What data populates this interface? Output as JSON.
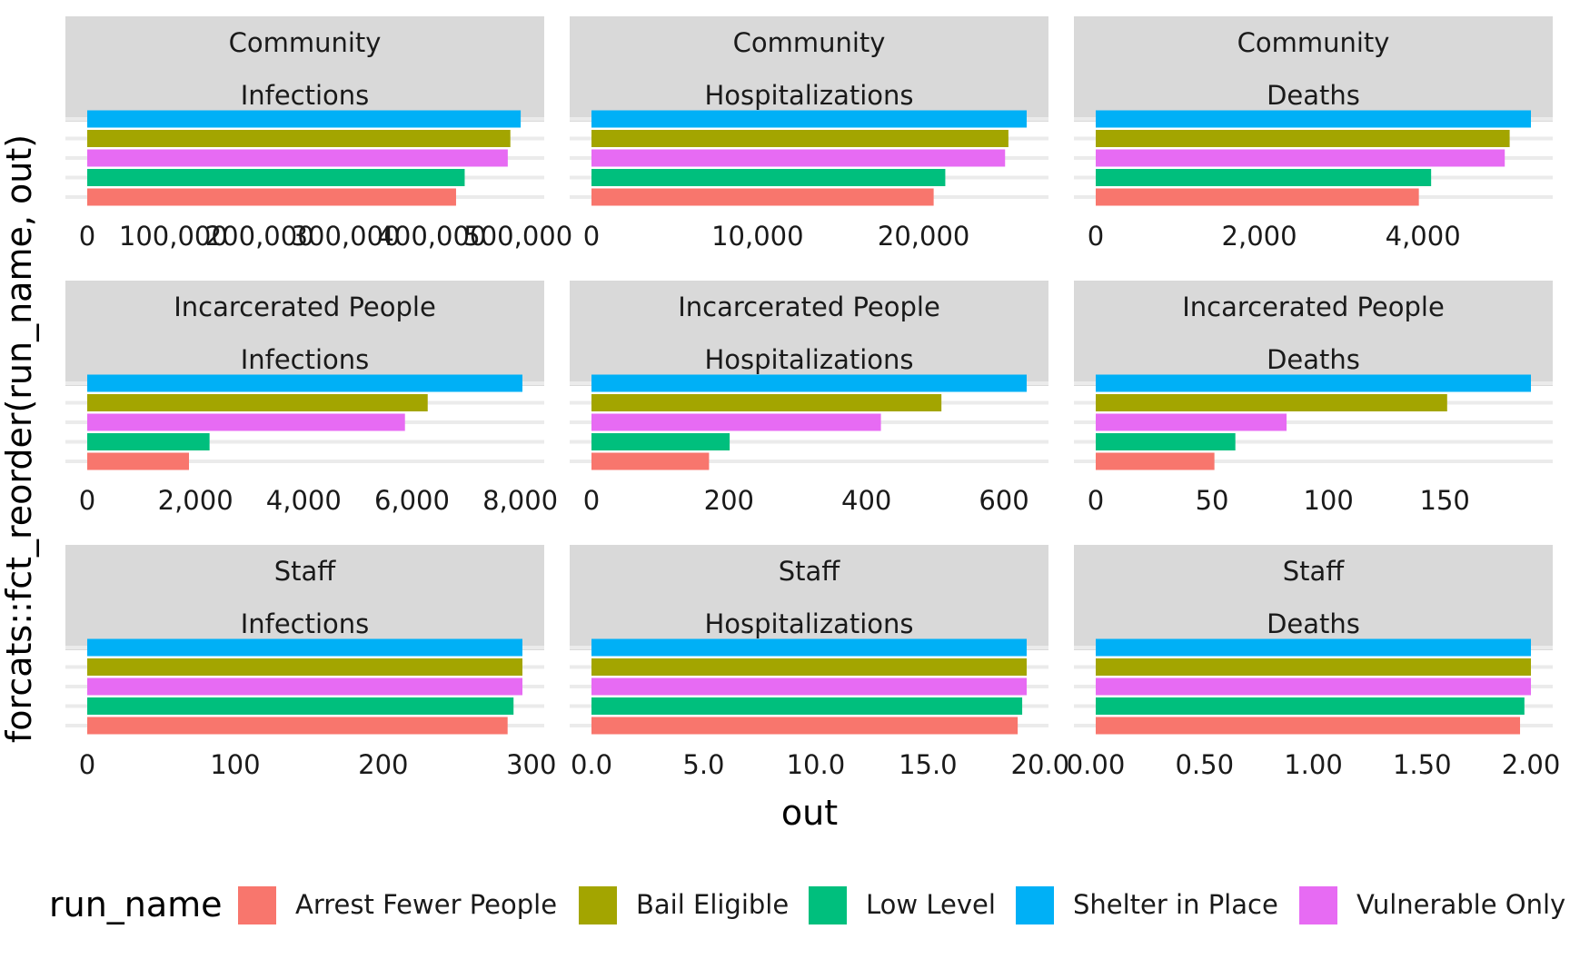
{
  "chart_data": {
    "type": "bar",
    "orientation": "horizontal",
    "facet_rows": [
      "Community",
      "Incarcerated People",
      "Staff"
    ],
    "facet_cols": [
      "Infections",
      "Hospitalizations",
      "Deaths"
    ],
    "categories_bottom_to_top": [
      "Arrest Fewer People",
      "Low Level",
      "Vulnerable Only",
      "Bail Eligible",
      "Shelter in Place"
    ],
    "xlabel": "out",
    "ylabel": "forcats::fct_reorder(run_name, out)",
    "legend": {
      "title": "run_name",
      "position": "bottom",
      "entries": [
        {
          "label": "Arrest Fewer People",
          "color": "#F8766D"
        },
        {
          "label": "Bail Eligible",
          "color": "#A3A500"
        },
        {
          "label": "Low Level",
          "color": "#00BF7D"
        },
        {
          "label": "Shelter in Place",
          "color": "#00B0F6"
        },
        {
          "label": "Vulnerable Only",
          "color": "#E76BF3"
        }
      ]
    },
    "panels": [
      {
        "row": "Community",
        "col": "Infections",
        "xlim": [
          0,
          505000
        ],
        "ticks": [
          {
            "v": 0,
            "label": "0"
          },
          {
            "v": 100000,
            "label": "100,000"
          },
          {
            "v": 200000,
            "label": "200,000"
          },
          {
            "v": 300000,
            "label": "300,000"
          },
          {
            "v": 400000,
            "label": "400,000"
          },
          {
            "v": 500000,
            "label": "500,000"
          }
        ],
        "values": {
          "Arrest Fewer People": 428000,
          "Low Level": 438000,
          "Vulnerable Only": 488000,
          "Bail Eligible": 491000,
          "Shelter in Place": 503000
        }
      },
      {
        "row": "Community",
        "col": "Hospitalizations",
        "xlim": [
          0,
          26200
        ],
        "ticks": [
          {
            "v": 0,
            "label": "0"
          },
          {
            "v": 10000,
            "label": "10,000"
          },
          {
            "v": 20000,
            "label": "20,000"
          }
        ],
        "values": {
          "Arrest Fewer People": 20600,
          "Low Level": 21300,
          "Vulnerable Only": 24900,
          "Bail Eligible": 25100,
          "Shelter in Place": 26200
        }
      },
      {
        "row": "Community",
        "col": "Deaths",
        "xlim": [
          0,
          5320
        ],
        "ticks": [
          {
            "v": 0,
            "label": "0"
          },
          {
            "v": 2000,
            "label": "2,000"
          },
          {
            "v": 4000,
            "label": "4,000"
          }
        ],
        "values": {
          "Arrest Fewer People": 3950,
          "Low Level": 4100,
          "Vulnerable Only": 5000,
          "Bail Eligible": 5060,
          "Shelter in Place": 5320
        }
      },
      {
        "row": "Incarcerated People",
        "col": "Infections",
        "xlim": [
          0,
          8040
        ],
        "ticks": [
          {
            "v": 0,
            "label": "0"
          },
          {
            "v": 2000,
            "label": "2,000"
          },
          {
            "v": 4000,
            "label": "4,000"
          },
          {
            "v": 6000,
            "label": "6,000"
          },
          {
            "v": 8000,
            "label": "8,000"
          }
        ],
        "values": {
          "Arrest Fewer People": 1880,
          "Low Level": 2260,
          "Vulnerable Only": 5870,
          "Bail Eligible": 6290,
          "Shelter in Place": 8040
        }
      },
      {
        "row": "Incarcerated People",
        "col": "Hospitalizations",
        "xlim": [
          0,
          633
        ],
        "ticks": [
          {
            "v": 0,
            "label": "0"
          },
          {
            "v": 200,
            "label": "200"
          },
          {
            "v": 400,
            "label": "400"
          },
          {
            "v": 600,
            "label": "600"
          }
        ],
        "values": {
          "Arrest Fewer People": 171,
          "Low Level": 201,
          "Vulnerable Only": 421,
          "Bail Eligible": 509,
          "Shelter in Place": 633
        }
      },
      {
        "row": "Incarcerated People",
        "col": "Deaths",
        "xlim": [
          0,
          187
        ],
        "ticks": [
          {
            "v": 0,
            "label": "0"
          },
          {
            "v": 50,
            "label": "50"
          },
          {
            "v": 100,
            "label": "100"
          },
          {
            "v": 150,
            "label": "150"
          }
        ],
        "values": {
          "Arrest Fewer People": 51,
          "Low Level": 60,
          "Vulnerable Only": 82,
          "Bail Eligible": 151,
          "Shelter in Place": 187
        }
      },
      {
        "row": "Staff",
        "col": "Infections",
        "xlim": [
          0,
          294
        ],
        "ticks": [
          {
            "v": 0,
            "label": "0"
          },
          {
            "v": 100,
            "label": "100"
          },
          {
            "v": 200,
            "label": "200"
          },
          {
            "v": 300,
            "label": "300"
          }
        ],
        "values": {
          "Arrest Fewer People": 284,
          "Low Level": 288,
          "Vulnerable Only": 294,
          "Bail Eligible": 294,
          "Shelter in Place": 294
        }
      },
      {
        "row": "Staff",
        "col": "Hospitalizations",
        "xlim": [
          0,
          19.4
        ],
        "ticks": [
          {
            "v": 0,
            "label": "0.0"
          },
          {
            "v": 5,
            "label": "5.0"
          },
          {
            "v": 10,
            "label": "10.0"
          },
          {
            "v": 15,
            "label": "15.0"
          },
          {
            "v": 20,
            "label": "20.0"
          }
        ],
        "values": {
          "Arrest Fewer People": 19.0,
          "Low Level": 19.2,
          "Vulnerable Only": 19.4,
          "Bail Eligible": 19.4,
          "Shelter in Place": 19.4
        }
      },
      {
        "row": "Staff",
        "col": "Deaths",
        "xlim": [
          0,
          2.0
        ],
        "ticks": [
          {
            "v": 0,
            "label": "0.00"
          },
          {
            "v": 0.5,
            "label": "0.50"
          },
          {
            "v": 1.0,
            "label": "1.00"
          },
          {
            "v": 1.5,
            "label": "1.50"
          },
          {
            "v": 2.0,
            "label": "2.00"
          }
        ],
        "values": {
          "Arrest Fewer People": 1.95,
          "Low Level": 1.97,
          "Vulnerable Only": 2.0,
          "Bail Eligible": 2.0,
          "Shelter in Place": 2.0
        }
      }
    ]
  }
}
